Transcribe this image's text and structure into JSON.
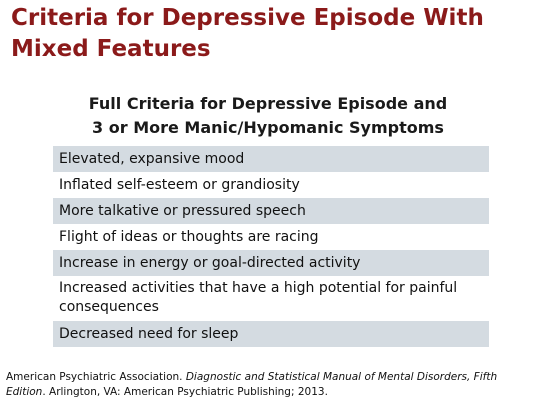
{
  "slide": {
    "title": "Criteria for Depressive Episode With Mixed Features",
    "subtitle_line1": "Full Criteria for Depressive Episode and",
    "subtitle_line2": "3 or More Manic/Hypomanic Symptoms",
    "criteria": [
      "Elevated, expansive mood",
      "Inflated self-esteem or grandiosity",
      "More talkative or pressured speech",
      "Flight of ideas or thoughts are racing",
      "Increase in energy or goal-directed activity",
      "Increased activities that have a high potential for painful consequences",
      "Decreased need for sleep"
    ],
    "colors": {
      "title": "#8b1a1a",
      "row_shade": "#d4dbe1"
    }
  },
  "citation": {
    "author": "American Psychiatric Association. ",
    "work_title": "Diagnostic and Statistical Manual of Mental Disorders, Fifth Edition",
    "publisher": ". Arlington, VA: American Psychiatric Publishing; 2013."
  }
}
